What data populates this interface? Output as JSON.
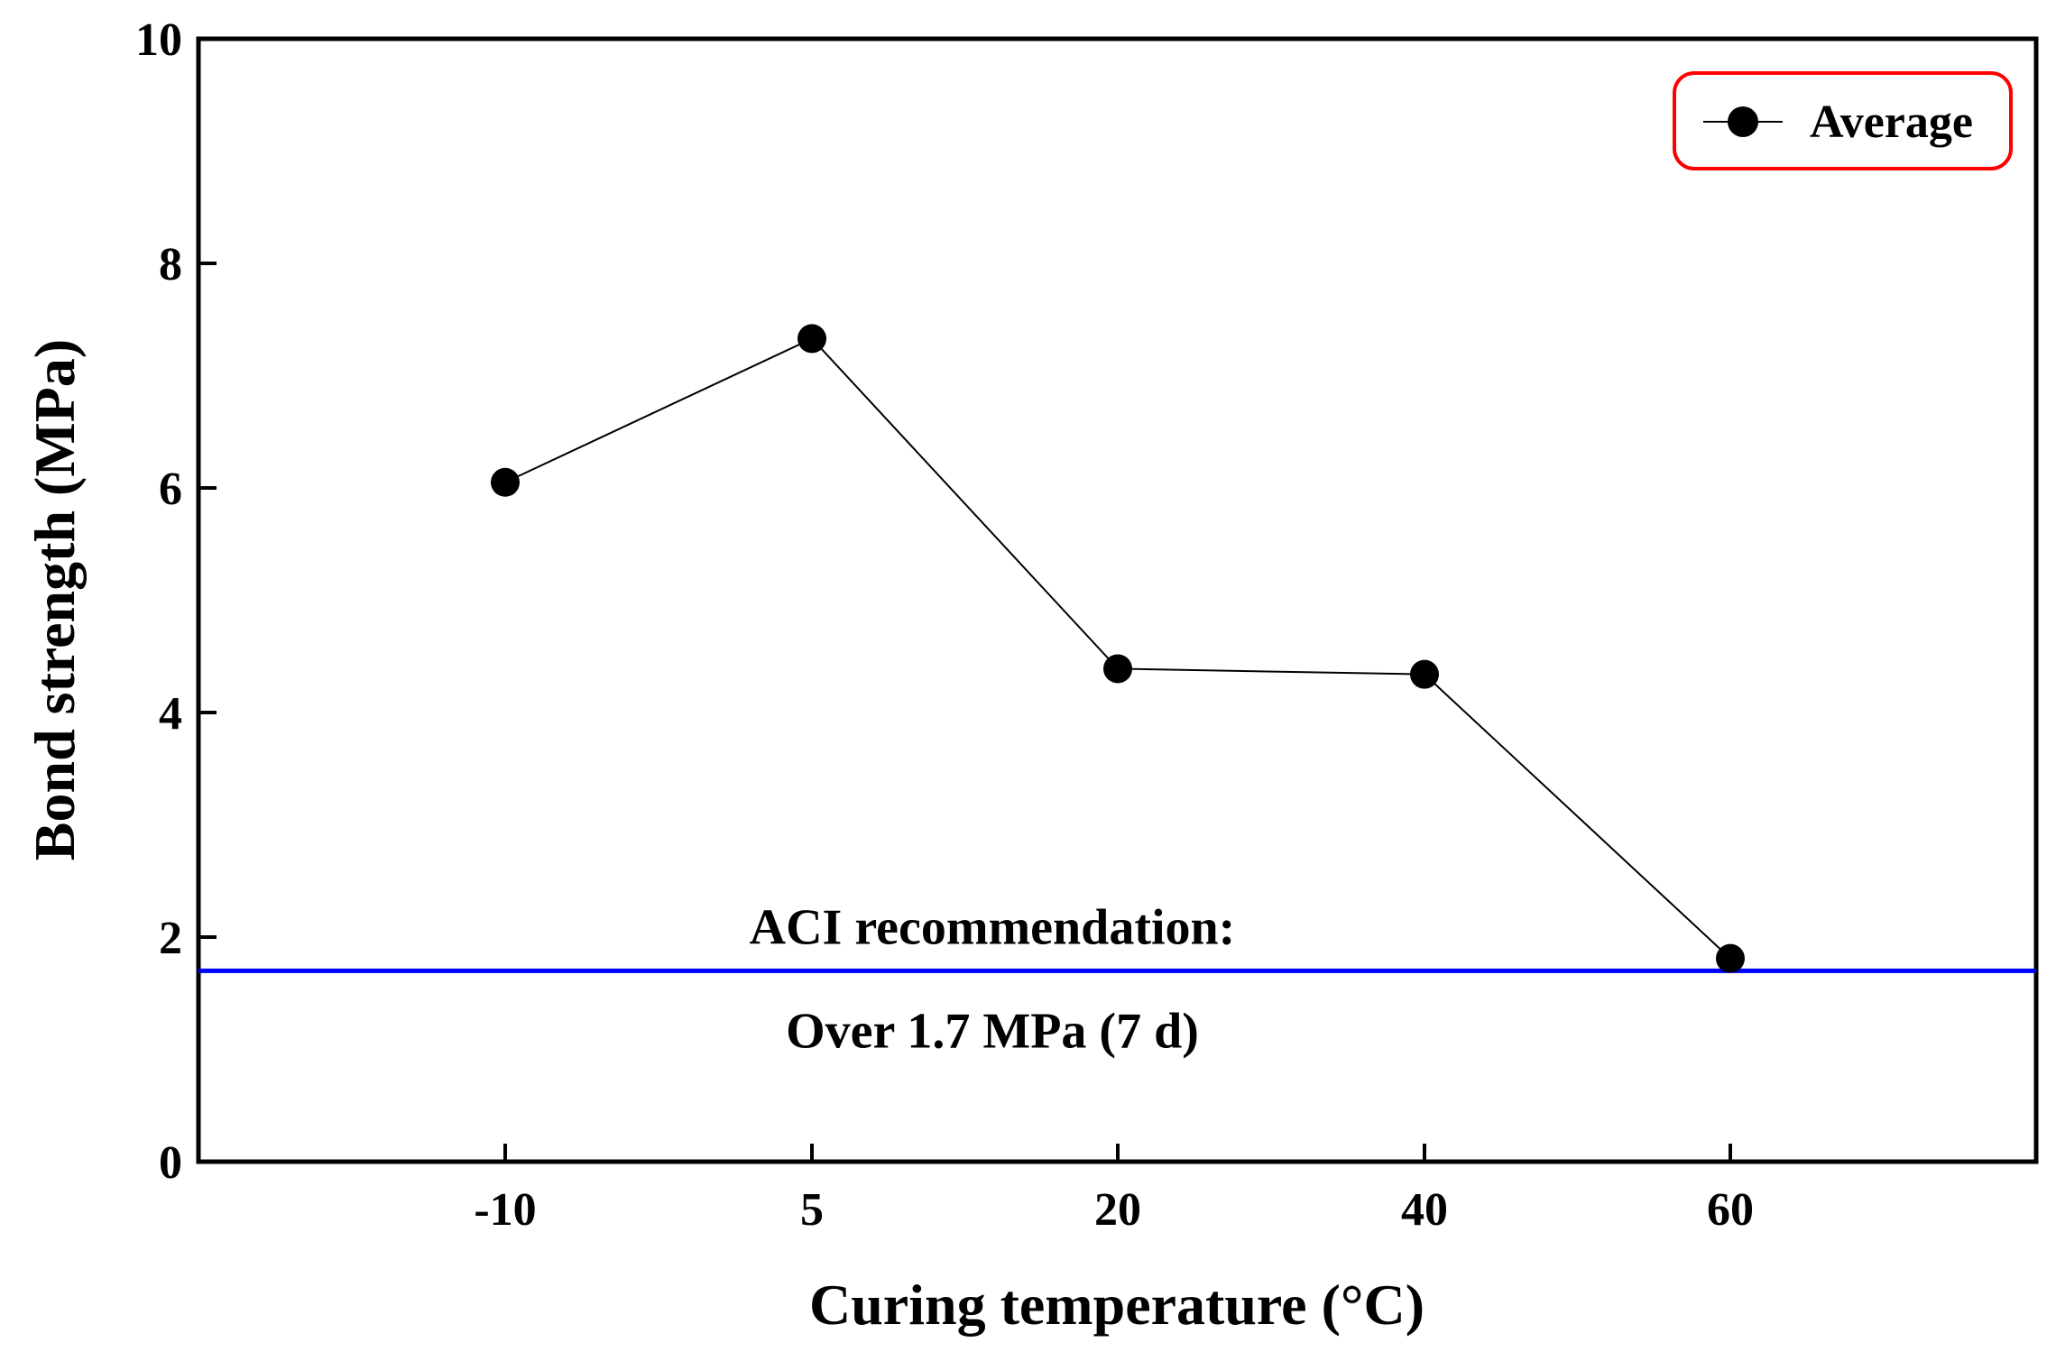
{
  "chart_data": {
    "type": "line",
    "title": "",
    "xlabel": "Curing temperature (°C)",
    "ylabel": "Bond strength (MPa)",
    "categories": [
      "-10",
      "5",
      "20",
      "40",
      "60"
    ],
    "ylim": [
      0,
      10
    ],
    "yticks": [
      "0",
      "2",
      "4",
      "6",
      "8",
      "10"
    ],
    "series": [
      {
        "name": "Average",
        "values": [
          6.05,
          7.33,
          4.39,
          4.34,
          1.81
        ],
        "color": "#000000"
      }
    ],
    "reference_line": {
      "value": 1.7,
      "color": "#0000ff",
      "label_above": "ACI recommendation:",
      "label_below": "Over 1.7 MPa (7 d)"
    },
    "legend": {
      "position": "top-right",
      "label": "Average",
      "border_color": "#ff0000"
    },
    "grid": false
  }
}
